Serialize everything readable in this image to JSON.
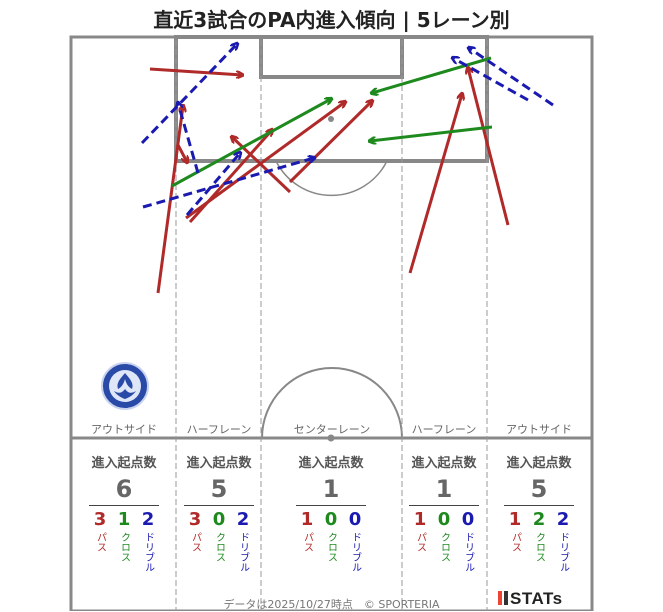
{
  "title": "直近3試合のPA内進入傾向 | 5レーン別",
  "lanes": [
    "アウトサイド",
    "ハーフレーン",
    "センターレーン",
    "ハーフレーン",
    "アウトサイド"
  ],
  "colors": {
    "pass": "#b02a2a",
    "cross": "#1e8a1e",
    "dribble": "#1a1ab0",
    "line": "#888888"
  },
  "stats": {
    "header": "進入起点数",
    "labels": {
      "pass": "パス",
      "cross": "クロス",
      "dribble": "ドリブル"
    },
    "columns": [
      {
        "total": "6",
        "pass": "3",
        "cross": "1",
        "dribble": "2"
      },
      {
        "total": "5",
        "pass": "3",
        "cross": "0",
        "dribble": "2"
      },
      {
        "total": "1",
        "pass": "1",
        "cross": "0",
        "dribble": "0"
      },
      {
        "total": "1",
        "pass": "1",
        "cross": "0",
        "dribble": "0"
      },
      {
        "total": "5",
        "pass": "1",
        "cross": "2",
        "dribble": "2"
      }
    ]
  },
  "footer": "データは2025/10/27時点　© SPORTERIA",
  "brand": "STATs",
  "crest_text": "MITO HOLLYHOCK",
  "chart_data": {
    "type": "arrow-map",
    "arrows": [
      {
        "kind": "pass",
        "from": [
          150,
          69
        ],
        "to": [
          242,
          75
        ]
      },
      {
        "kind": "pass",
        "from": [
          158,
          293
        ],
        "to": [
          183,
          106
        ]
      },
      {
        "kind": "pass",
        "from": [
          178,
          145
        ],
        "to": [
          187,
          162
        ]
      },
      {
        "kind": "pass",
        "from": [
          190,
          222
        ],
        "to": [
          272,
          130
        ]
      },
      {
        "kind": "pass",
        "from": [
          186,
          218
        ],
        "to": [
          345,
          102
        ]
      },
      {
        "kind": "pass",
        "from": [
          290,
          182
        ],
        "to": [
          372,
          101
        ]
      },
      {
        "kind": "pass",
        "from": [
          290,
          192
        ],
        "to": [
          232,
          137
        ]
      },
      {
        "kind": "pass",
        "from": [
          410,
          273
        ],
        "to": [
          462,
          94
        ]
      },
      {
        "kind": "pass",
        "from": [
          508,
          225
        ],
        "to": [
          468,
          68
        ]
      },
      {
        "kind": "cross",
        "from": [
          172,
          186
        ],
        "to": [
          331,
          99
        ]
      },
      {
        "kind": "cross",
        "from": [
          491,
          58
        ],
        "to": [
          372,
          93
        ]
      },
      {
        "kind": "cross",
        "from": [
          492,
          127
        ],
        "to": [
          370,
          141
        ]
      },
      {
        "kind": "dribble",
        "from": [
          142,
          143
        ],
        "to": [
          237,
          44
        ]
      },
      {
        "kind": "dribble",
        "from": [
          198,
          173
        ],
        "to": [
          178,
          103
        ]
      },
      {
        "kind": "dribble",
        "from": [
          187,
          215
        ],
        "to": [
          240,
          153
        ]
      },
      {
        "kind": "dribble",
        "from": [
          143,
          207
        ],
        "to": [
          314,
          158
        ]
      },
      {
        "kind": "dribble",
        "from": [
          553,
          105
        ],
        "to": [
          469,
          48
        ]
      },
      {
        "kind": "dribble",
        "from": [
          528,
          100
        ],
        "to": [
          453,
          58
        ]
      }
    ]
  }
}
